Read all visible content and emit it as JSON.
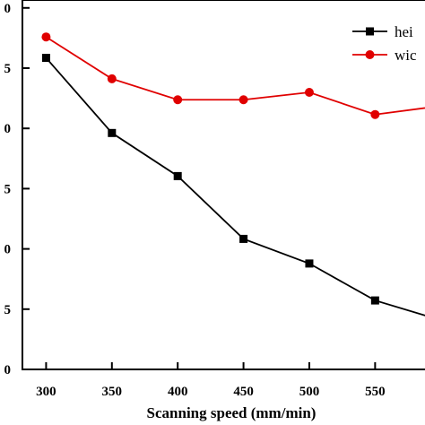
{
  "chart_data": {
    "type": "line",
    "xlabel": "Scanning speed (mm/min)",
    "ylabel": "",
    "x": [
      300,
      350,
      400,
      450,
      500,
      550,
      600
    ],
    "x_ticks": [
      "300",
      "350",
      "400",
      "450",
      "500",
      "550"
    ],
    "y_ticks": [
      "0",
      "5",
      "0",
      "5",
      "0",
      "5",
      "0"
    ],
    "ylim": [
      0,
      3.0
    ],
    "xlim": [
      282,
      592
    ],
    "grid": false,
    "legend_position": "top-right",
    "series": [
      {
        "name": "hei",
        "color": "#000000",
        "marker": "square",
        "values": [
          2.53,
          1.92,
          1.57,
          1.06,
          0.86,
          0.56,
          0.4
        ]
      },
      {
        "name": "wic",
        "color": "#e00000",
        "marker": "circle",
        "values": [
          2.7,
          2.36,
          2.19,
          2.19,
          2.25,
          2.07,
          2.14
        ]
      }
    ]
  }
}
